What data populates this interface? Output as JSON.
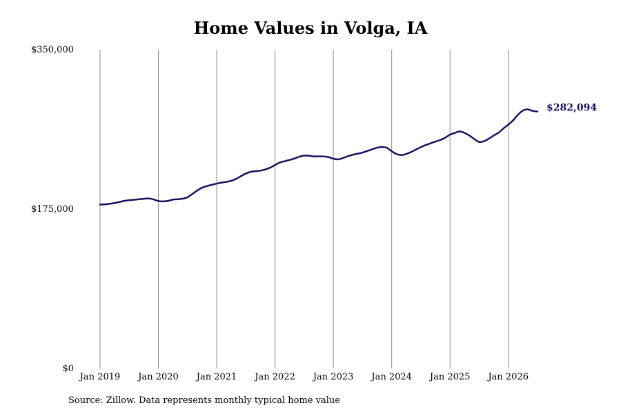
{
  "chart_data": {
    "type": "line",
    "title": "Home Values in Volga, IA",
    "xlabel": "",
    "ylabel": "",
    "source": "Source: Zillow. Data represents monthly typical home value",
    "end_label": "$282,094",
    "y_ticks": [
      "$0",
      "$175,000",
      "$350,000"
    ],
    "y_tick_values": [
      0,
      175000,
      350000
    ],
    "ylim": [
      0,
      350000
    ],
    "x_ticks": [
      "Jan 2019",
      "Jan 2020",
      "Jan 2021",
      "Jan 2022",
      "Jan 2023",
      "Jan 2024",
      "Jan 2025",
      "Jan 2026"
    ],
    "x_tick_values": [
      2019.0,
      2020.0,
      2021.0,
      2022.0,
      2023.0,
      2024.0,
      2025.0,
      2026.0
    ],
    "xlim": [
      2019.0,
      2026.5
    ],
    "grid": "vertical",
    "line_color": "#15125c",
    "series": [
      {
        "x": [
          2019.0,
          2019.083,
          2019.167,
          2019.25,
          2019.333,
          2019.417,
          2019.5,
          2019.583,
          2019.667,
          2019.75,
          2019.833,
          2019.917,
          2020.0,
          2020.083,
          2020.167,
          2020.25,
          2020.333,
          2020.417,
          2020.5,
          2020.583,
          2020.667,
          2020.75,
          2020.833,
          2020.917,
          2021.0,
          2021.083,
          2021.167,
          2021.25,
          2021.333,
          2021.417,
          2021.5,
          2021.583,
          2021.667,
          2021.75,
          2021.833,
          2021.917,
          2022.0,
          2022.083,
          2022.167,
          2022.25,
          2022.333,
          2022.417,
          2022.5,
          2022.583,
          2022.667,
          2022.75,
          2022.833,
          2022.917,
          2023.0,
          2023.083,
          2023.167,
          2023.25,
          2023.333,
          2023.417,
          2023.5,
          2023.583,
          2023.667,
          2023.75,
          2023.833,
          2023.917,
          2024.0,
          2024.083,
          2024.167,
          2024.25,
          2024.333,
          2024.417,
          2024.5,
          2024.583,
          2024.667,
          2024.75,
          2024.833,
          2024.917,
          2025.0,
          2025.083,
          2025.167,
          2025.25,
          2025.333,
          2025.417,
          2025.5,
          2025.583,
          2025.667,
          2025.75,
          2025.833,
          2025.917,
          2026.0,
          2026.083,
          2026.167,
          2026.25,
          2026.333,
          2026.417,
          2026.5
        ],
        "values": [
          180000,
          180200,
          180800,
          181600,
          182800,
          184000,
          184800,
          185200,
          185800,
          186300,
          186600,
          185600,
          183800,
          183400,
          184000,
          185400,
          185800,
          186400,
          188000,
          191600,
          195400,
          198500,
          200200,
          201700,
          203000,
          204000,
          204900,
          206000,
          208100,
          211200,
          214000,
          215900,
          216600,
          217200,
          218500,
          220500,
          223400,
          226100,
          227600,
          228900,
          230500,
          232500,
          233700,
          233500,
          232800,
          232900,
          232800,
          232100,
          230300,
          229600,
          231100,
          233100,
          234600,
          235800,
          237000,
          238800,
          240700,
          242400,
          243200,
          242300,
          238500,
          235400,
          234300,
          235500,
          237700,
          240400,
          243000,
          245300,
          247200,
          249100,
          250800,
          253300,
          256700,
          258600,
          260200,
          258600,
          255700,
          251800,
          248700,
          249500,
          252300,
          255800,
          258900,
          263600,
          267700,
          272500,
          278700,
          283200,
          284500,
          282800,
          282094
        ]
      }
    ]
  }
}
